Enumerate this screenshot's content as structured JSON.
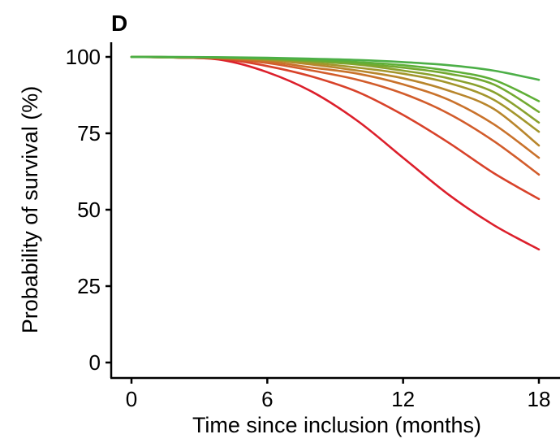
{
  "chart_data": {
    "type": "line",
    "panel_label": "D",
    "xlabel": "Time since inclusion (months)",
    "ylabel": "Probability of survival (%)",
    "xlim": [
      0,
      18
    ],
    "ylim": [
      0,
      100
    ],
    "xticks": [
      "0",
      "6",
      "12",
      "18"
    ],
    "yticks": [
      "0",
      "25",
      "50",
      "75",
      "100"
    ],
    "grid": false,
    "legend": "none",
    "x": [
      0,
      2,
      4,
      6,
      8,
      10,
      12,
      14,
      16,
      18
    ],
    "series": [
      {
        "color": "#dc1f2b",
        "values": [
          100,
          99.8,
          99,
          95,
          88.5,
          79,
          67,
          55,
          45,
          37
        ]
      },
      {
        "color": "#d8422a",
        "values": [
          100,
          99.8,
          99.3,
          97,
          93.5,
          88.5,
          81,
          72,
          62,
          53.5
        ]
      },
      {
        "color": "#d25c2b",
        "values": [
          100,
          99.8,
          99.5,
          98,
          95.5,
          92.5,
          88,
          81.5,
          72.5,
          61.5
        ]
      },
      {
        "color": "#c9722b",
        "values": [
          100,
          99.9,
          99.6,
          98.5,
          96.5,
          94.5,
          91,
          86,
          78,
          67
        ]
      },
      {
        "color": "#b8862c",
        "values": [
          100,
          99.9,
          99.7,
          99,
          97.5,
          95.5,
          93,
          89,
          83,
          71
        ]
      },
      {
        "color": "#a3962c",
        "values": [
          100,
          99.9,
          99.7,
          99.1,
          98,
          96.5,
          94.5,
          91.5,
          86,
          75.5
        ]
      },
      {
        "color": "#8aa12e",
        "values": [
          100,
          99.9,
          99.8,
          99.3,
          98.5,
          97.5,
          95.5,
          93,
          88.5,
          78.5
        ]
      },
      {
        "color": "#73a931",
        "values": [
          100,
          99.9,
          99.8,
          99.4,
          98.7,
          97.8,
          96.5,
          94.5,
          91,
          82
        ]
      },
      {
        "color": "#5eaf37",
        "values": [
          100,
          99.9,
          99.8,
          99.5,
          99,
          98.3,
          97.3,
          95.5,
          92.5,
          85.5
        ]
      },
      {
        "color": "#4caf47",
        "values": [
          100,
          100,
          99.9,
          99.7,
          99.4,
          99,
          98.3,
          97.3,
          95.5,
          92.5
        ]
      }
    ]
  }
}
